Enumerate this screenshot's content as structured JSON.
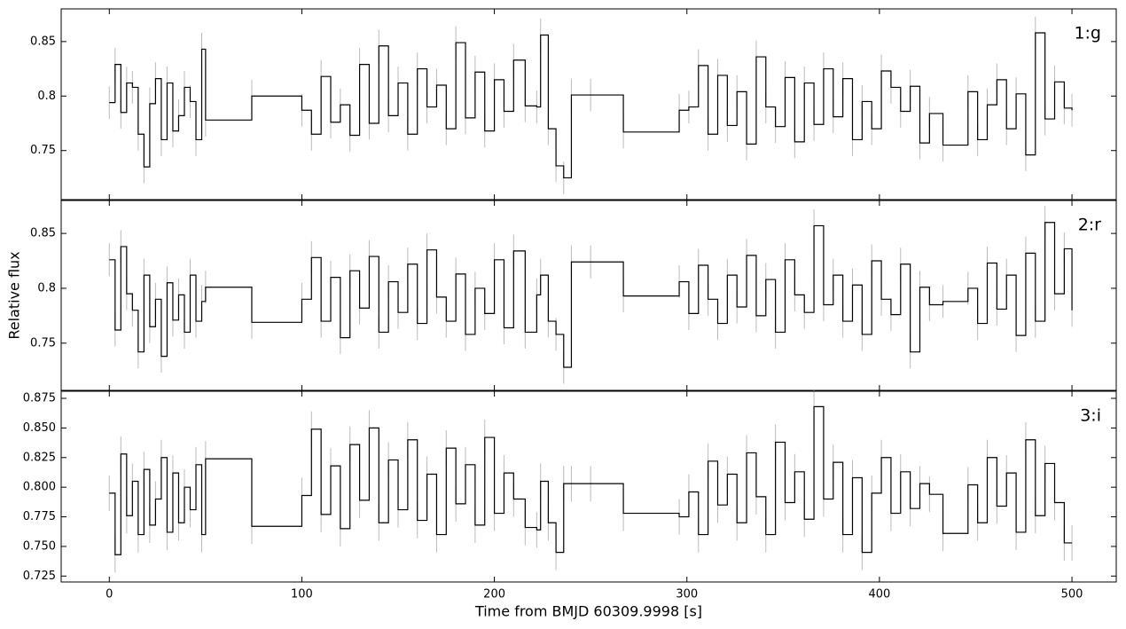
{
  "chart_data": [
    {
      "type": "step",
      "label": "1:g",
      "color": "#000000",
      "error_color": "#bbbbbb",
      "yerr": 0.015,
      "xlim": [
        -25,
        523
      ],
      "xticks": [
        0,
        100,
        200,
        300,
        400,
        500
      ],
      "ylim": [
        0.705,
        0.88
      ],
      "yticks": [
        0.75,
        0.8,
        0.85
      ],
      "x": [
        0,
        3,
        6,
        9,
        12,
        15,
        18,
        21,
        24,
        27,
        30,
        33,
        36,
        39,
        42,
        45,
        48,
        50,
        74,
        100,
        105,
        110,
        115,
        120,
        125,
        130,
        135,
        140,
        145,
        150,
        155,
        160,
        165,
        170,
        175,
        180,
        185,
        190,
        195,
        200,
        205,
        210,
        216,
        222,
        224,
        228,
        232,
        236,
        240,
        250,
        267,
        296,
        301,
        306,
        311,
        316,
        321,
        326,
        331,
        336,
        341,
        346,
        351,
        356,
        361,
        366,
        371,
        376,
        381,
        386,
        391,
        396,
        401,
        406,
        411,
        416,
        421,
        426,
        433,
        446,
        451,
        456,
        461,
        466,
        471,
        476,
        481,
        486,
        491,
        496,
        500
      ],
      "values": [
        0.794,
        0.829,
        0.785,
        0.812,
        0.808,
        0.765,
        0.735,
        0.793,
        0.816,
        0.76,
        0.812,
        0.768,
        0.782,
        0.808,
        0.795,
        0.76,
        0.843,
        0.778,
        0.8,
        0.787,
        0.765,
        0.818,
        0.776,
        0.792,
        0.764,
        0.829,
        0.775,
        0.846,
        0.782,
        0.812,
        0.765,
        0.825,
        0.79,
        0.81,
        0.77,
        0.849,
        0.78,
        0.822,
        0.768,
        0.815,
        0.786,
        0.833,
        0.791,
        0.79,
        0.856,
        0.77,
        0.736,
        0.725,
        0.801,
        0.801,
        0.767,
        0.787,
        0.79,
        0.828,
        0.765,
        0.819,
        0.773,
        0.804,
        0.756,
        0.836,
        0.79,
        0.772,
        0.817,
        0.758,
        0.812,
        0.774,
        0.825,
        0.781,
        0.816,
        0.76,
        0.795,
        0.77,
        0.823,
        0.808,
        0.786,
        0.809,
        0.757,
        0.784,
        0.755,
        0.804,
        0.76,
        0.792,
        0.815,
        0.77,
        0.802,
        0.746,
        0.858,
        0.779,
        0.813,
        0.789,
        0.787
      ]
    },
    {
      "type": "step",
      "label": "2:r",
      "color": "#000000",
      "error_color": "#bbbbbb",
      "yerr": 0.015,
      "ylabel": "Relative flux",
      "xlim": [
        -25,
        523
      ],
      "xticks": [
        0,
        100,
        200,
        300,
        400,
        500
      ],
      "ylim": [
        0.707,
        0.88
      ],
      "yticks": [
        0.75,
        0.8,
        0.85
      ],
      "x": [
        0,
        3,
        6,
        9,
        12,
        15,
        18,
        21,
        24,
        27,
        30,
        33,
        36,
        39,
        42,
        45,
        48,
        50,
        74,
        100,
        105,
        110,
        115,
        120,
        125,
        130,
        135,
        140,
        145,
        150,
        155,
        160,
        165,
        170,
        175,
        180,
        185,
        190,
        195,
        200,
        205,
        210,
        216,
        222,
        224,
        228,
        232,
        236,
        240,
        250,
        267,
        296,
        301,
        306,
        311,
        316,
        321,
        326,
        331,
        336,
        341,
        346,
        351,
        356,
        361,
        366,
        371,
        376,
        381,
        386,
        391,
        396,
        401,
        406,
        411,
        416,
        421,
        426,
        433,
        446,
        451,
        456,
        461,
        466,
        471,
        476,
        481,
        486,
        491,
        496,
        500
      ],
      "values": [
        0.826,
        0.762,
        0.838,
        0.795,
        0.78,
        0.742,
        0.812,
        0.765,
        0.79,
        0.738,
        0.805,
        0.771,
        0.794,
        0.76,
        0.812,
        0.77,
        0.788,
        0.801,
        0.769,
        0.79,
        0.828,
        0.77,
        0.81,
        0.755,
        0.816,
        0.782,
        0.829,
        0.76,
        0.806,
        0.778,
        0.822,
        0.768,
        0.835,
        0.792,
        0.77,
        0.813,
        0.758,
        0.8,
        0.777,
        0.826,
        0.764,
        0.834,
        0.76,
        0.794,
        0.812,
        0.77,
        0.758,
        0.728,
        0.824,
        0.824,
        0.793,
        0.806,
        0.777,
        0.821,
        0.79,
        0.768,
        0.812,
        0.783,
        0.83,
        0.775,
        0.808,
        0.76,
        0.826,
        0.794,
        0.778,
        0.857,
        0.785,
        0.812,
        0.77,
        0.803,
        0.758,
        0.825,
        0.79,
        0.776,
        0.822,
        0.742,
        0.801,
        0.785,
        0.788,
        0.8,
        0.768,
        0.823,
        0.781,
        0.812,
        0.757,
        0.832,
        0.77,
        0.86,
        0.795,
        0.836,
        0.78
      ]
    },
    {
      "type": "step",
      "label": "3:i",
      "color": "#000000",
      "error_color": "#bbbbbb",
      "yerr": 0.015,
      "xlabel": "Time from BMJD 60309.9998 [s]",
      "xlim": [
        -25,
        523
      ],
      "xticks": [
        0,
        100,
        200,
        300,
        400,
        500
      ],
      "ylim": [
        0.72,
        0.881
      ],
      "yticks": [
        {
          "value": 0.725,
          "label": "0.725"
        },
        {
          "value": 0.75,
          "label": "0.750"
        },
        {
          "value": 0.775,
          "label": "0.775"
        },
        {
          "value": 0.8,
          "label": "0.800"
        },
        {
          "value": 0.825,
          "label": "0.825"
        },
        {
          "value": 0.85,
          "label": "0.850"
        },
        {
          "value": 0.875,
          "label": "0.875"
        }
      ],
      "x": [
        0,
        3,
        6,
        9,
        12,
        15,
        18,
        21,
        24,
        27,
        30,
        33,
        36,
        39,
        42,
        45,
        48,
        50,
        74,
        100,
        105,
        110,
        115,
        120,
        125,
        130,
        135,
        140,
        145,
        150,
        155,
        160,
        165,
        170,
        175,
        180,
        185,
        190,
        195,
        200,
        205,
        210,
        216,
        222,
        224,
        228,
        232,
        236,
        240,
        250,
        267,
        296,
        301,
        306,
        311,
        316,
        321,
        326,
        331,
        336,
        341,
        346,
        351,
        356,
        361,
        366,
        371,
        376,
        381,
        386,
        391,
        396,
        401,
        406,
        411,
        416,
        421,
        426,
        433,
        446,
        451,
        456,
        461,
        466,
        471,
        476,
        481,
        486,
        491,
        496,
        500
      ],
      "values": [
        0.795,
        0.743,
        0.828,
        0.776,
        0.805,
        0.76,
        0.815,
        0.768,
        0.79,
        0.825,
        0.762,
        0.812,
        0.77,
        0.8,
        0.781,
        0.819,
        0.76,
        0.824,
        0.767,
        0.793,
        0.849,
        0.777,
        0.818,
        0.765,
        0.836,
        0.789,
        0.85,
        0.77,
        0.823,
        0.781,
        0.84,
        0.772,
        0.811,
        0.76,
        0.833,
        0.786,
        0.819,
        0.768,
        0.842,
        0.778,
        0.812,
        0.79,
        0.766,
        0.764,
        0.805,
        0.77,
        0.745,
        0.803,
        0.803,
        0.803,
        0.778,
        0.775,
        0.796,
        0.76,
        0.822,
        0.785,
        0.811,
        0.77,
        0.829,
        0.792,
        0.76,
        0.838,
        0.787,
        0.813,
        0.773,
        0.868,
        0.79,
        0.821,
        0.76,
        0.808,
        0.745,
        0.795,
        0.825,
        0.778,
        0.813,
        0.782,
        0.803,
        0.794,
        0.761,
        0.802,
        0.77,
        0.825,
        0.784,
        0.812,
        0.762,
        0.84,
        0.776,
        0.82,
        0.787,
        0.753,
        0.753
      ]
    }
  ]
}
